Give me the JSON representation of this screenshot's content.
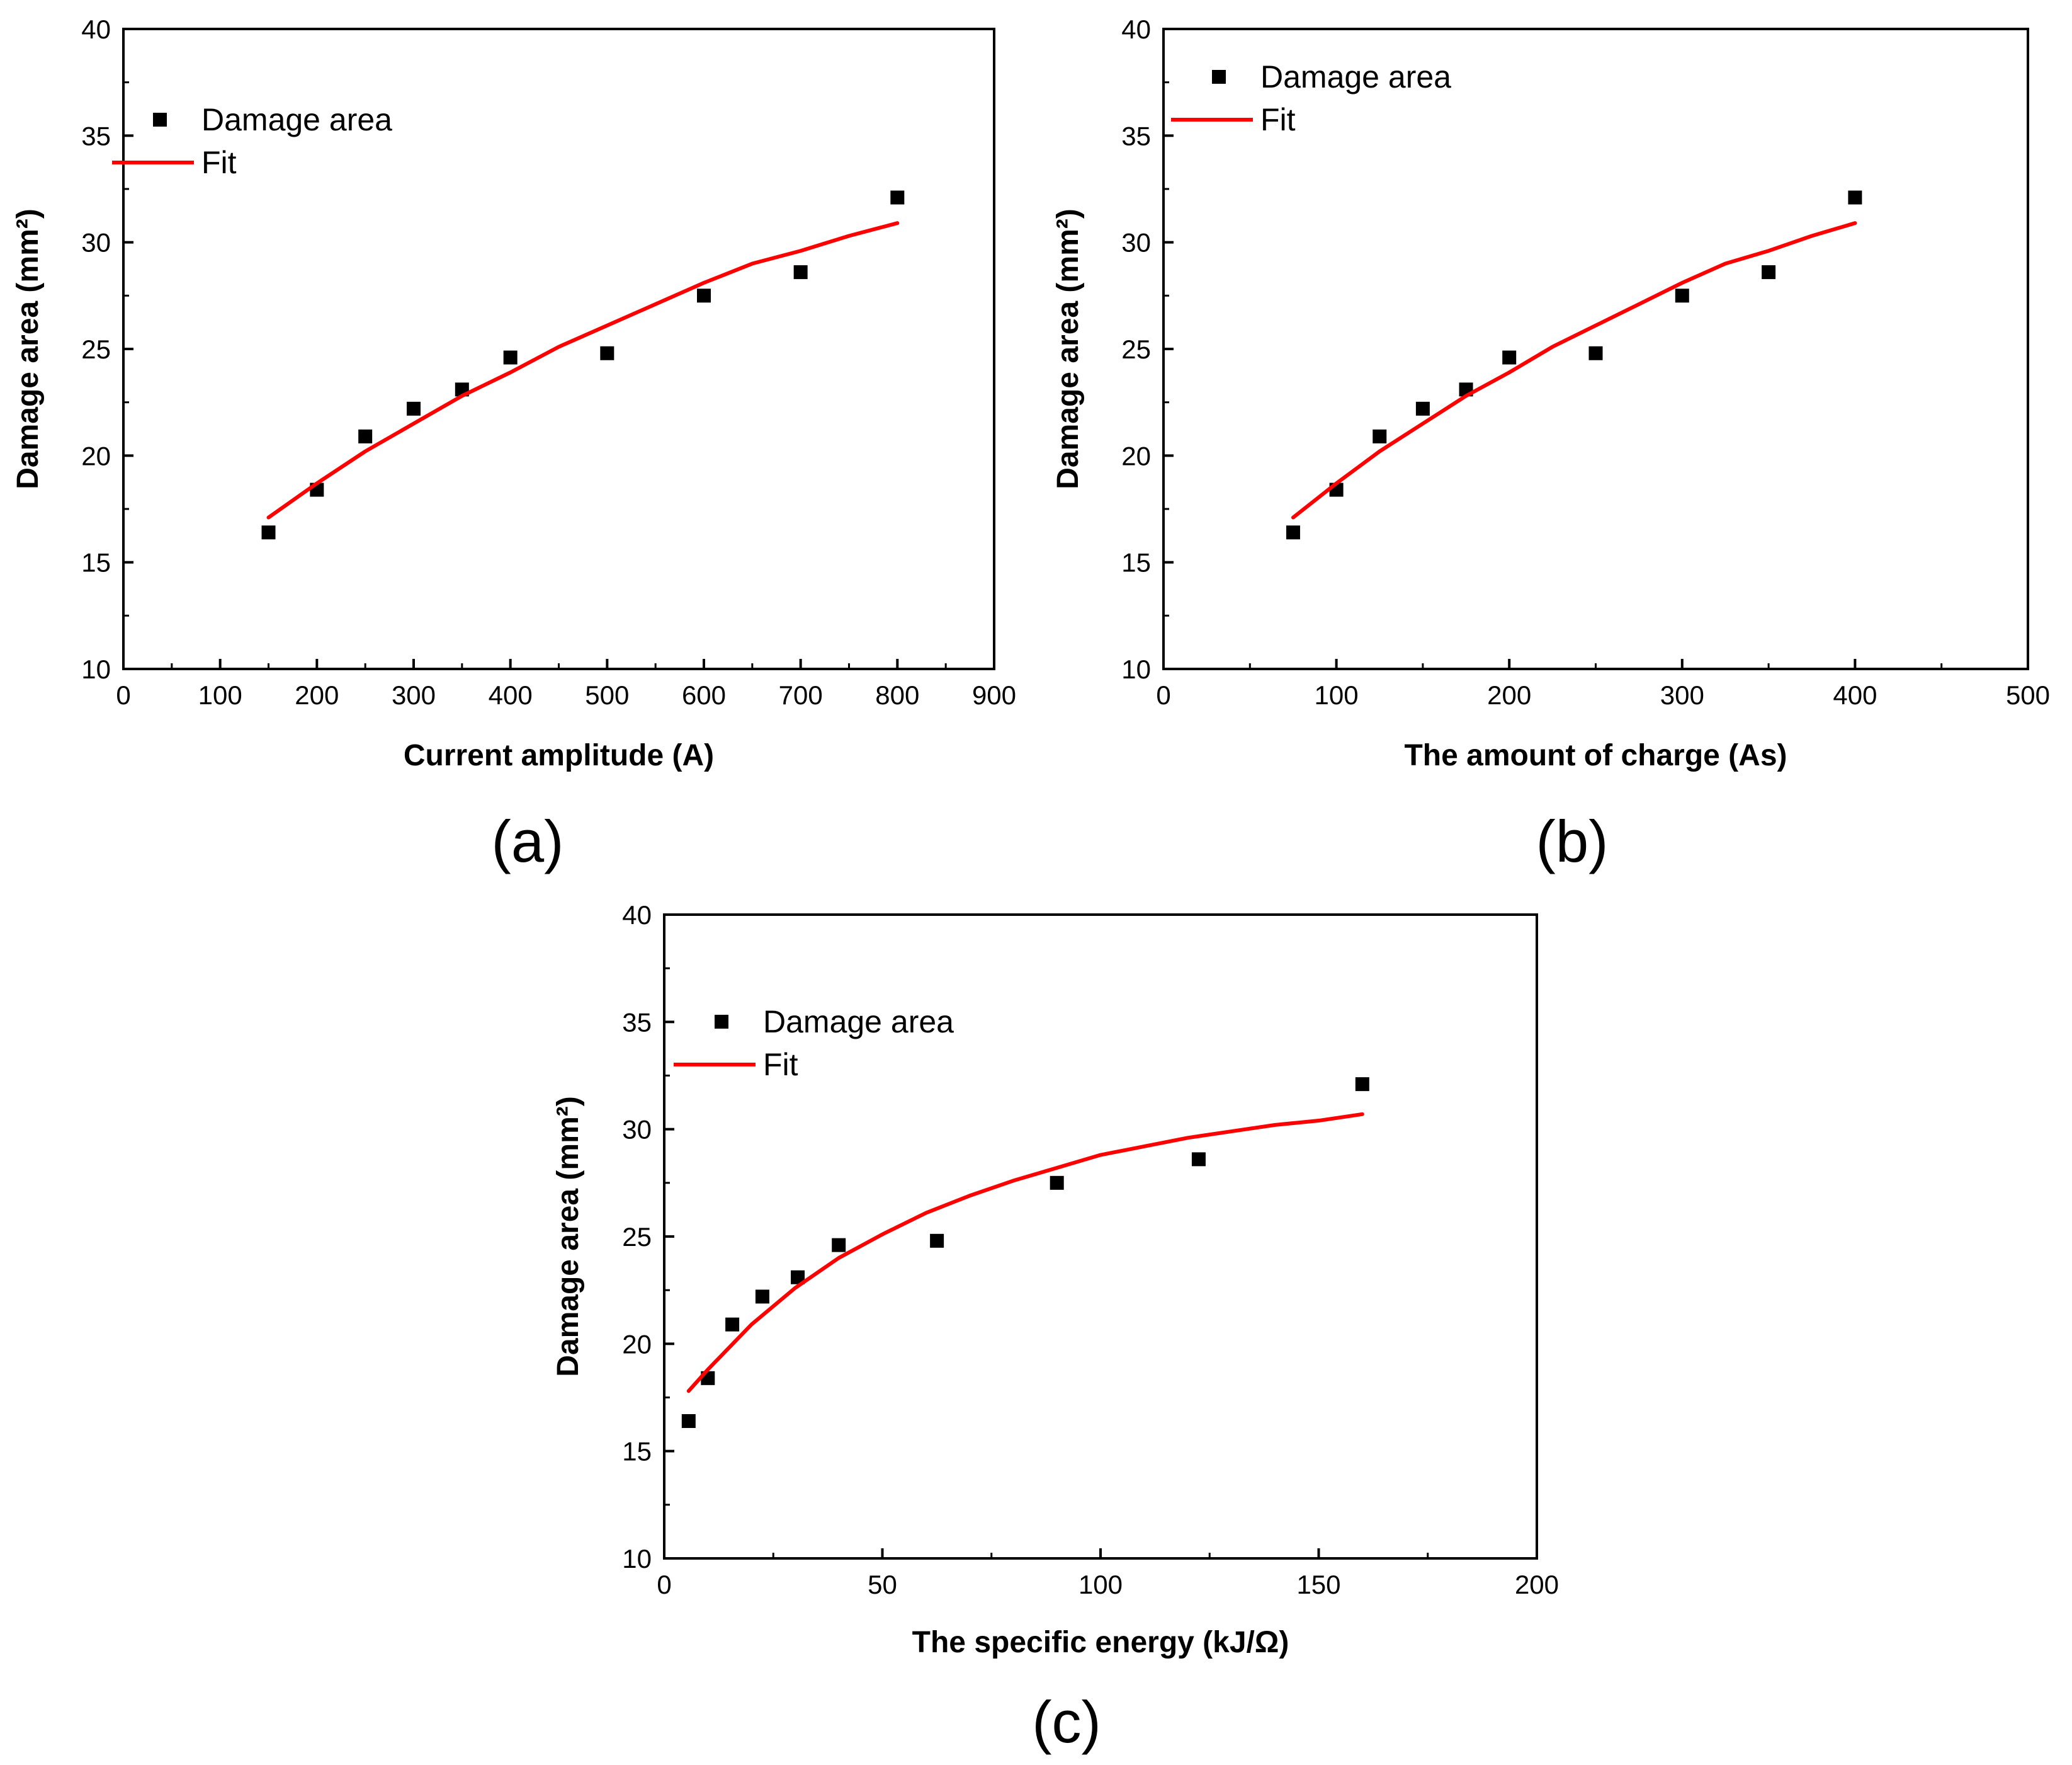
{
  "chart_data": [
    {
      "type": "scatter",
      "panel_label": "(a)",
      "xlabel": "Current amplitude (A)",
      "ylabel": "Damage area (mm²)",
      "xlim": [
        0,
        900
      ],
      "ylim": [
        10,
        40
      ],
      "xticks": [
        0,
        100,
        200,
        300,
        400,
        500,
        600,
        700,
        800,
        900
      ],
      "yticks": [
        10,
        15,
        20,
        25,
        30,
        35,
        40
      ],
      "legend_position": "top-left",
      "series": [
        {
          "name": "Damage area",
          "kind": "scatter",
          "color": "#000000",
          "x": [
            150,
            200,
            250,
            300,
            350,
            400,
            500,
            600,
            700,
            800
          ],
          "y": [
            16.4,
            18.4,
            20.9,
            22.2,
            23.1,
            24.6,
            24.8,
            27.5,
            28.6,
            32.1
          ]
        },
        {
          "name": "Fit",
          "kind": "line",
          "color": "#ff0000",
          "x": [
            150,
            200,
            250,
            300,
            350,
            400,
            450,
            500,
            550,
            600,
            650,
            700,
            750,
            800
          ],
          "y": [
            17.1,
            18.7,
            20.2,
            21.5,
            22.8,
            23.9,
            25.1,
            26.1,
            27.1,
            28.1,
            29.0,
            29.6,
            30.3,
            30.9
          ]
        }
      ]
    },
    {
      "type": "scatter",
      "panel_label": "(b)",
      "xlabel": "The amount of charge (As)",
      "ylabel": "Damage area (mm²)",
      "xlim": [
        0,
        500
      ],
      "ylim": [
        10,
        40
      ],
      "xticks": [
        0,
        100,
        200,
        300,
        400,
        500
      ],
      "yticks": [
        10,
        15,
        20,
        25,
        30,
        35,
        40
      ],
      "legend_position": "top-left",
      "series": [
        {
          "name": "Damage area",
          "kind": "scatter",
          "color": "#000000",
          "x": [
            75,
            100,
            125,
            150,
            175,
            200,
            250,
            300,
            350,
            400
          ],
          "y": [
            16.4,
            18.4,
            20.9,
            22.2,
            23.1,
            24.6,
            24.8,
            27.5,
            28.6,
            32.1
          ]
        },
        {
          "name": "Fit",
          "kind": "line",
          "color": "#ff0000",
          "x": [
            75,
            100,
            125,
            150,
            175,
            200,
            225,
            250,
            275,
            300,
            325,
            350,
            375,
            400
          ],
          "y": [
            17.1,
            18.7,
            20.2,
            21.5,
            22.8,
            23.9,
            25.1,
            26.1,
            27.1,
            28.1,
            29.0,
            29.6,
            30.3,
            30.9
          ]
        }
      ]
    },
    {
      "type": "scatter",
      "panel_label": "(c)",
      "xlabel": "The specific energy (kJ/Ω)",
      "ylabel": "Damage area (mm²)",
      "xlim": [
        0,
        200
      ],
      "ylim": [
        10,
        40
      ],
      "xticks": [
        0,
        50,
        100,
        150,
        200
      ],
      "yticks": [
        10,
        15,
        20,
        25,
        30,
        35,
        40
      ],
      "legend_position": "top-left",
      "series": [
        {
          "name": "Damage area",
          "kind": "scatter",
          "color": "#000000",
          "x": [
            5.6,
            10,
            15.6,
            22.5,
            30.6,
            40,
            62.5,
            90,
            122.5,
            160
          ],
          "y": [
            16.4,
            18.4,
            20.9,
            22.2,
            23.1,
            24.6,
            24.8,
            27.5,
            28.6,
            32.1
          ]
        },
        {
          "name": "Fit",
          "kind": "line",
          "color": "#ff0000",
          "x": [
            5.6,
            10,
            20,
            30,
            40,
            50,
            60,
            70,
            80,
            90,
            100,
            110,
            120,
            130,
            140,
            150,
            160
          ],
          "y": [
            17.8,
            18.8,
            20.9,
            22.6,
            24.0,
            25.1,
            26.1,
            26.9,
            27.6,
            28.2,
            28.8,
            29.2,
            29.6,
            29.9,
            30.2,
            30.4,
            30.7
          ]
        }
      ]
    }
  ]
}
